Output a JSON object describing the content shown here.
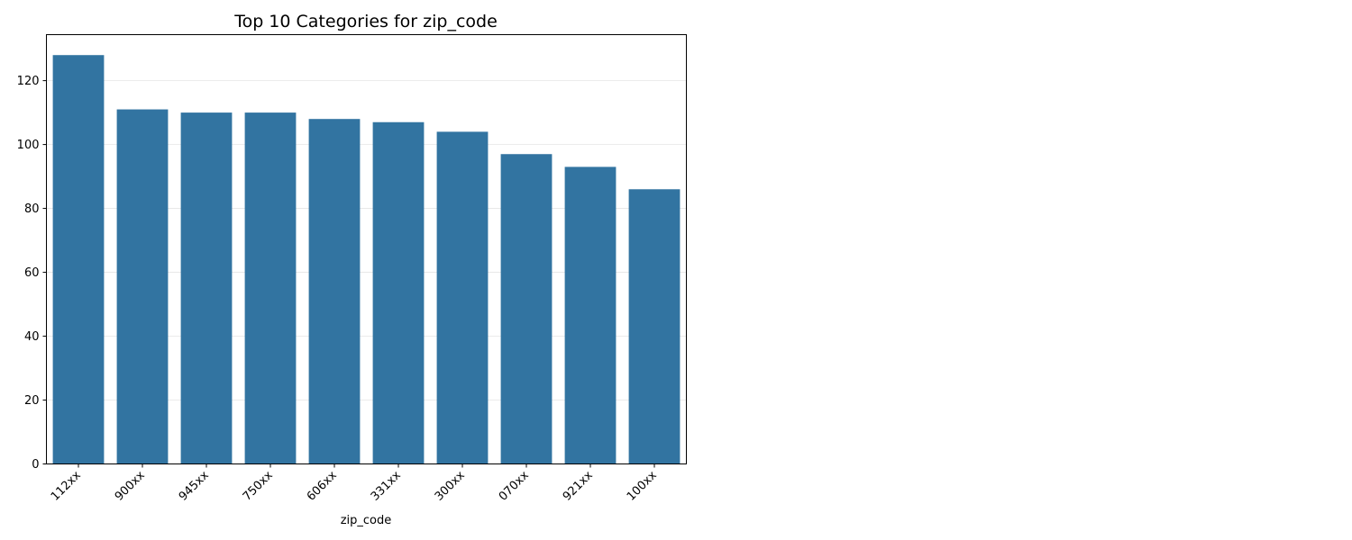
{
  "chart_data": {
    "type": "bar",
    "title": "Top 10 Categories for zip_code",
    "xlabel": "zip_code",
    "ylabel": "",
    "categories": [
      "112xx",
      "900xx",
      "945xx",
      "750xx",
      "606xx",
      "331xx",
      "300xx",
      "070xx",
      "921xx",
      "100xx"
    ],
    "values": [
      128,
      111,
      110,
      110,
      108,
      107,
      104,
      97,
      93,
      86
    ],
    "ylim": [
      0,
      134.4
    ],
    "yticks": [
      0,
      20,
      40,
      60,
      80,
      100,
      120
    ],
    "grid": "horizontal",
    "legend": "none",
    "bar_color": "#3274a1",
    "grid_color": "#e5e5e5"
  }
}
